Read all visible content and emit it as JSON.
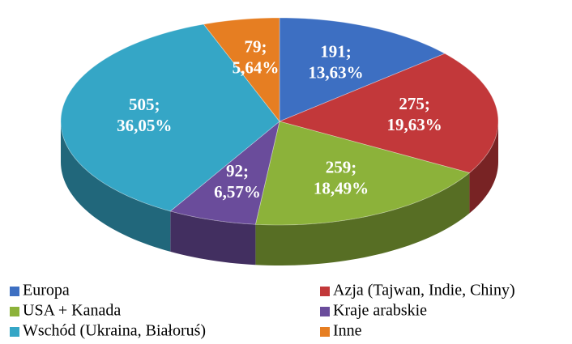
{
  "chart_data": {
    "type": "pie",
    "categories": [
      "Europa",
      "Azja (Tajwan, Indie, Chiny)",
      "USA + Kanada",
      "Kraje arabskie",
      "Wschód (Ukraina, Białoruś)",
      "Inne"
    ],
    "values": [
      191,
      275,
      259,
      92,
      505,
      79
    ],
    "value_labels": [
      "191;",
      "275;",
      "259;",
      "92;",
      "505;",
      "79;"
    ],
    "percents": [
      13.63,
      19.63,
      18.49,
      6.57,
      36.05,
      5.64
    ],
    "percent_labels": [
      "13,63%",
      "19,63%",
      "18,49%",
      "6,57%",
      "36,05%",
      "5,64%"
    ],
    "colors": [
      "#3d6fc2",
      "#c2383a",
      "#8cb23a",
      "#6a4c9b",
      "#35a6c6",
      "#e67e22"
    ],
    "legend": "bottom"
  }
}
